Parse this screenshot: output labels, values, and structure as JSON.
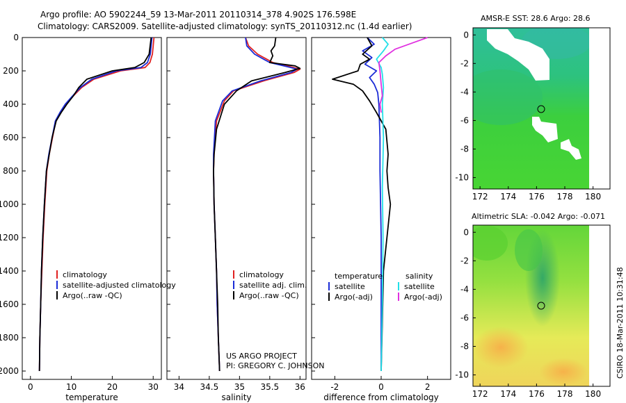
{
  "header": {
    "line1": "Argo profile: AO 5902244_59 13-Mar-2011 20110314_378 4.902S 176.598E",
    "line2": "Climatology: CARS2009. Satellite-adjusted climatology: synTS_20110312.nc (1.4d earlier)"
  },
  "footer": {
    "project": "US ARGO PROJECT",
    "pi": "PI: GREGORY C. JOHNSON",
    "stamp": "CSIRO 18-Mar-2011 10:31:48"
  },
  "colors": {
    "red": "#e02020",
    "blue": "#1a2bd6",
    "black": "#000000",
    "cyan": "#22e0e8",
    "magenta": "#e030e0"
  },
  "chart_data": [
    {
      "id": "temperature",
      "type": "line",
      "xlabel": "temperature",
      "ylabel": "",
      "xlim": [
        -2,
        32
      ],
      "ylim": [
        2050,
        0
      ],
      "y_reversed": true,
      "xticks": [
        0,
        10,
        20,
        30
      ],
      "yticks": [
        0,
        200,
        400,
        600,
        800,
        1000,
        1200,
        1400,
        1600,
        1800,
        2000
      ],
      "series": [
        {
          "name": "climatology",
          "color": "#e02020",
          "x": [
            30.2,
            29.8,
            29.2,
            28.0,
            22.0,
            15.5,
            12.5,
            10.5,
            8.6,
            7.3,
            6.2,
            5.4,
            4.6,
            4.0,
            3.5,
            3.1,
            2.8,
            2.5,
            2.3,
            2.2
          ],
          "y": [
            0,
            100,
            150,
            180,
            200,
            250,
            300,
            350,
            400,
            450,
            500,
            600,
            700,
            800,
            1000,
            1200,
            1400,
            1600,
            1800,
            2000
          ]
        },
        {
          "name": "satellite-adjusted climatology",
          "color": "#1a2bd6",
          "x": [
            29.7,
            29.3,
            28.6,
            27.0,
            21.0,
            15.0,
            12.2,
            10.3,
            8.5,
            7.2,
            6.1,
            5.3,
            4.5,
            3.9,
            3.4,
            3.0,
            2.7,
            2.5,
            2.3,
            2.2
          ],
          "y": [
            0,
            100,
            150,
            180,
            200,
            250,
            300,
            350,
            400,
            450,
            500,
            600,
            700,
            800,
            1000,
            1200,
            1400,
            1600,
            1800,
            2000
          ]
        },
        {
          "name": "Argo(..raw -QC)",
          "color": "#000000",
          "x": [
            29.5,
            29.0,
            27.8,
            25.5,
            20.0,
            13.8,
            11.8,
            10.5,
            8.9,
            7.5,
            6.3,
            5.3,
            4.6,
            3.9,
            3.4,
            3.0,
            2.7,
            2.5,
            2.3,
            2.2
          ],
          "y": [
            0,
            100,
            150,
            180,
            200,
            250,
            300,
            350,
            400,
            450,
            500,
            600,
            700,
            800,
            1000,
            1200,
            1400,
            1600,
            1800,
            2000
          ]
        }
      ],
      "legend": [
        "climatology",
        "satellite-adjusted climatology",
        "Argo(..raw -QC)"
      ]
    },
    {
      "id": "salinity",
      "type": "line",
      "xlabel": "salinity",
      "xlim": [
        33.8,
        36.1
      ],
      "ylim": [
        2050,
        0
      ],
      "y_reversed": true,
      "xticks": [
        34,
        34.5,
        35,
        35.5,
        36
      ],
      "series": [
        {
          "name": "climatology",
          "color": "#e02020",
          "x": [
            35.1,
            35.15,
            35.3,
            35.55,
            35.9,
            36.0,
            35.9,
            35.4,
            34.9,
            34.75,
            34.62,
            34.58,
            34.57,
            34.58,
            34.6,
            34.62,
            34.63,
            34.65,
            34.66,
            34.67
          ],
          "y": [
            0,
            50,
            100,
            150,
            180,
            190,
            210,
            260,
            320,
            380,
            500,
            700,
            800,
            1000,
            1200,
            1400,
            1600,
            1800,
            1900,
            2000
          ]
        },
        {
          "name": "satellite adj. clim.",
          "color": "#1a2bd6",
          "x": [
            35.1,
            35.12,
            35.25,
            35.5,
            35.85,
            35.95,
            35.85,
            35.35,
            34.88,
            34.72,
            34.6,
            34.57,
            34.57,
            34.58,
            34.6,
            34.62,
            34.63,
            34.65,
            34.66,
            34.67
          ],
          "y": [
            0,
            50,
            100,
            150,
            180,
            190,
            210,
            260,
            320,
            380,
            500,
            700,
            800,
            1000,
            1200,
            1400,
            1600,
            1800,
            1900,
            2000
          ]
        },
        {
          "name": "Argo(..raw -QC)",
          "color": "#000000",
          "x": [
            35.6,
            35.58,
            35.52,
            35.55,
            35.5,
            35.92,
            36.0,
            35.75,
            35.2,
            34.95,
            34.75,
            34.62,
            34.58,
            34.57,
            34.58,
            34.6,
            34.62,
            34.64,
            34.65,
            34.67
          ],
          "y": [
            0,
            50,
            80,
            110,
            150,
            170,
            185,
            210,
            260,
            320,
            400,
            550,
            700,
            800,
            1000,
            1200,
            1400,
            1600,
            1800,
            2000
          ]
        }
      ],
      "legend": [
        "climatology",
        "satellite adj. clim.",
        "Argo(..raw -QC)"
      ]
    },
    {
      "id": "difference",
      "type": "line",
      "xlabel": "difference from climatology",
      "xlim": [
        -3,
        3
      ],
      "ylim": [
        2050,
        0
      ],
      "y_reversed": true,
      "xticks": [
        -2,
        0,
        2
      ],
      "series": [
        {
          "name": "temperature satellite",
          "color": "#1a2bd6",
          "x": [
            -0.6,
            -0.3,
            -0.8,
            -0.4,
            -0.7,
            -0.2,
            -0.5,
            -0.3,
            -0.15,
            -0.1,
            -0.05,
            -0.05,
            0.0,
            0.0,
            0.0
          ],
          "y": [
            0,
            40,
            80,
            120,
            160,
            200,
            240,
            280,
            330,
            400,
            600,
            800,
            1200,
            1600,
            2000
          ]
        },
        {
          "name": "temperature Argo(-adj)",
          "color": "#000000",
          "x": [
            -0.6,
            -0.4,
            -0.8,
            -0.5,
            -0.9,
            -1.0,
            -2.1,
            -1.2,
            -0.8,
            -0.5,
            -0.2,
            0.2,
            0.3,
            0.25,
            0.3,
            0.4,
            0.25,
            0.1,
            0.05,
            0.0
          ],
          "y": [
            0,
            50,
            100,
            130,
            160,
            200,
            250,
            280,
            320,
            380,
            450,
            550,
            700,
            800,
            900,
            1000,
            1200,
            1400,
            1700,
            2000
          ]
        },
        {
          "name": "salinity satellite",
          "color": "#22e0e8",
          "x": [
            0.05,
            0.3,
            0.1,
            -0.2,
            0.0,
            0.05,
            0.1,
            0.05,
            0.1,
            0.05,
            0.08,
            0.05,
            0.0
          ],
          "y": [
            0,
            40,
            80,
            130,
            180,
            220,
            300,
            400,
            600,
            900,
            1200,
            1600,
            2000
          ]
        },
        {
          "name": "salinity Argo(-adj)",
          "color": "#e030e0",
          "x": [
            2.0,
            1.4,
            0.6,
            0.2,
            -0.1,
            -0.05,
            0.0,
            0.05,
            -0.05,
            0.0
          ],
          "y": [
            0,
            30,
            70,
            110,
            150,
            200,
            280,
            350,
            400,
            450
          ]
        }
      ],
      "legend_headers": [
        "temperature",
        "salinity"
      ],
      "legend": [
        "satellite",
        "Argo(-adj)",
        "satellite",
        "Argo(-adj)"
      ]
    },
    {
      "id": "sst_map",
      "type": "heatmap",
      "title": "AMSR-E SST: 28.6 Argo: 28.6",
      "xlim": [
        171.5,
        181.2
      ],
      "ylim": [
        -10.8,
        0.5
      ],
      "xticks": [
        172,
        174,
        176,
        178,
        180
      ],
      "yticks": [
        0,
        -2,
        -4,
        -6,
        -8,
        -10
      ],
      "float_position": [
        176.6,
        -4.9
      ]
    },
    {
      "id": "sla_map",
      "type": "heatmap",
      "title": "Altimetric SLA: -0.042 Argo: -0.071",
      "xlim": [
        171.5,
        181.2
      ],
      "ylim": [
        -10.8,
        0.5
      ],
      "xticks": [
        172,
        174,
        176,
        178,
        180
      ],
      "yticks": [
        0,
        -2,
        -4,
        -6,
        -8,
        -10
      ],
      "float_position": [
        176.6,
        -4.9
      ]
    }
  ]
}
